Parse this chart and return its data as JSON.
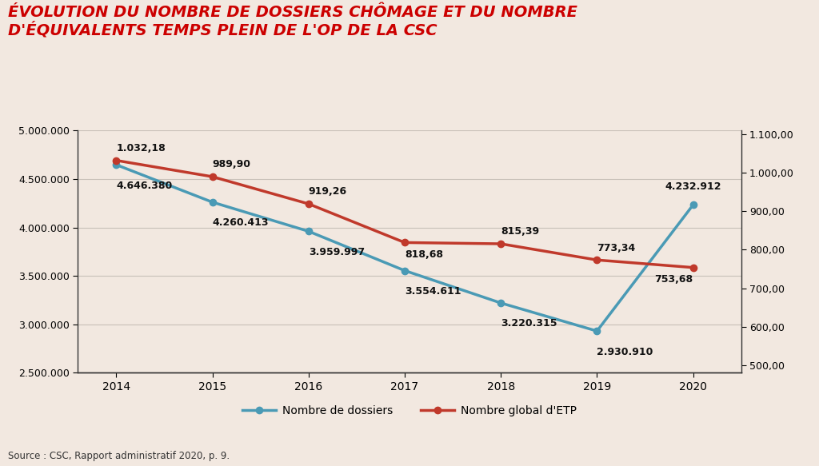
{
  "title_line1": "ÉVOLUTION DU NOMBRE DE DOSSIERS CHÔMAGE ET DU NOMBRE",
  "title_line2": "D'ÉQUIVALENTS TEMPS PLEIN DE L'OP DE LA CSC",
  "years": [
    2014,
    2015,
    2016,
    2017,
    2018,
    2019,
    2020
  ],
  "dossiers": [
    4646380,
    4260413,
    3959997,
    3554611,
    3220315,
    2930910,
    4232912
  ],
  "etp": [
    1032.18,
    989.9,
    919.26,
    818.68,
    815.39,
    773.34,
    753.68
  ],
  "dossiers_labels": [
    "4.646.380",
    "4.260.413",
    "3.959.997",
    "3.554.611",
    "3.220.315",
    "2.930.910",
    "4.232.912"
  ],
  "etp_labels": [
    "1.032,18",
    "989,90",
    "919,26",
    "818,68",
    "815,39",
    "773,34",
    "753,68"
  ],
  "dossiers_color": "#4a9ab5",
  "etp_color": "#c0392b",
  "background_color": "#f2e8e0",
  "ylim_left": [
    2500000,
    5000000
  ],
  "ylim_right": [
    480,
    1110
  ],
  "yticks_left": [
    2500000,
    3000000,
    3500000,
    4000000,
    4500000,
    5000000
  ],
  "yticks_right": [
    500,
    600,
    700,
    800,
    900,
    1000,
    1100
  ],
  "ytick_labels_left": [
    "2.500.000",
    "3.000.000",
    "3.500.000",
    "4.000.000",
    "4.500.000",
    "5.000.000"
  ],
  "ytick_labels_right": [
    "500,00",
    "600,00",
    "700,00",
    "800,00",
    "900,00",
    "1.000,00",
    "1.100,00"
  ],
  "legend_dossiers": "Nombre de dossiers",
  "legend_etp": "Nombre global d'ETP",
  "source": "Source : CSC, Rapport administratif 2020, p. 9.",
  "grid_color": "#c8c0b8",
  "line_width": 2.5,
  "marker_size": 6,
  "dossiers_label_x_offsets": [
    0.0,
    0.0,
    0.0,
    0.0,
    0.0,
    0.0,
    0.0
  ],
  "dossiers_label_y_offsets": [
    -160000,
    -160000,
    -160000,
    -160000,
    -160000,
    -160000,
    130000
  ],
  "dossiers_label_ha": [
    "left",
    "left",
    "left",
    "left",
    "left",
    "left",
    "center"
  ],
  "dossiers_label_va": [
    "top",
    "top",
    "top",
    "top",
    "top",
    "top",
    "bottom"
  ],
  "etp_label_x_offsets": [
    0.0,
    0.0,
    0.0,
    0.0,
    0.0,
    0.0,
    0.0
  ],
  "etp_label_y_offsets": [
    18,
    18,
    18,
    -18,
    18,
    18,
    -18
  ],
  "etp_label_ha": [
    "left",
    "left",
    "left",
    "left",
    "left",
    "left",
    "right"
  ],
  "etp_label_va": [
    "bottom",
    "bottom",
    "bottom",
    "top",
    "bottom",
    "bottom",
    "top"
  ]
}
